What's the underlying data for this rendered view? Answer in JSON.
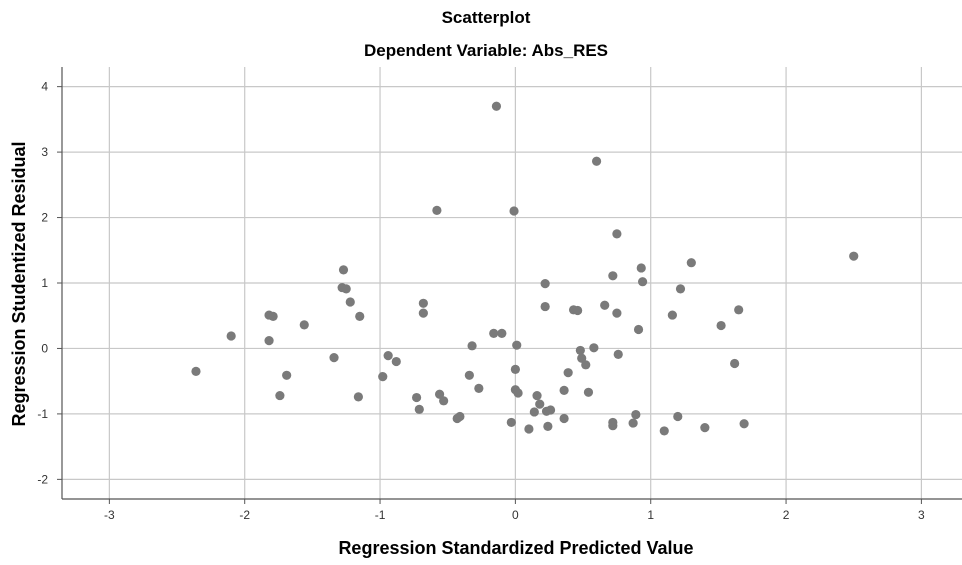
{
  "chart_data": {
    "type": "scatter",
    "title": "Scatterplot",
    "subtitle": "Dependent Variable: Abs_RES",
    "xlabel": "Regression Standardized Predicted Value",
    "ylabel": "Regression Studentized Residual",
    "xlim": [
      -3.35,
      3.3
    ],
    "ylim": [
      -2.3,
      4.3
    ],
    "xticks": [
      "-3",
      "-2",
      "-1",
      "0",
      "1",
      "2",
      "3"
    ],
    "yticks": [
      "4",
      "3",
      "2",
      "1",
      "0",
      "-1",
      "-2"
    ],
    "xtick_values": [
      -3,
      -2,
      -1,
      0,
      1,
      2,
      3
    ],
    "ytick_values": [
      4,
      3,
      2,
      1,
      0,
      -1,
      -2
    ],
    "grid": true,
    "legend": "none",
    "colors": {
      "point": "#7a7a7a",
      "grid": "#c8c8c8",
      "axis": "#555555"
    },
    "points": [
      {
        "x": -0.14,
        "y": 3.7
      },
      {
        "x": 0.6,
        "y": 2.86
      },
      {
        "x": -0.58,
        "y": 2.11
      },
      {
        "x": -0.01,
        "y": 2.1
      },
      {
        "x": 0.75,
        "y": 1.75
      },
      {
        "x": 2.5,
        "y": 1.41
      },
      {
        "x": 1.3,
        "y": 1.31
      },
      {
        "x": 0.93,
        "y": 1.23
      },
      {
        "x": -1.27,
        "y": 1.2
      },
      {
        "x": 0.72,
        "y": 1.11
      },
      {
        "x": 0.94,
        "y": 1.02
      },
      {
        "x": 0.22,
        "y": 0.99
      },
      {
        "x": -1.28,
        "y": 0.93
      },
      {
        "x": -1.25,
        "y": 0.91
      },
      {
        "x": 1.22,
        "y": 0.91
      },
      {
        "x": -1.22,
        "y": 0.71
      },
      {
        "x": -0.68,
        "y": 0.69
      },
      {
        "x": 0.66,
        "y": 0.66
      },
      {
        "x": 0.22,
        "y": 0.64
      },
      {
        "x": 1.65,
        "y": 0.59
      },
      {
        "x": 0.43,
        "y": 0.59
      },
      {
        "x": 0.46,
        "y": 0.58
      },
      {
        "x": 0.75,
        "y": 0.54
      },
      {
        "x": -0.68,
        "y": 0.54
      },
      {
        "x": -1.82,
        "y": 0.51
      },
      {
        "x": -1.79,
        "y": 0.49
      },
      {
        "x": -1.15,
        "y": 0.49
      },
      {
        "x": 1.16,
        "y": 0.51
      },
      {
        "x": -1.56,
        "y": 0.36
      },
      {
        "x": 1.52,
        "y": 0.35
      },
      {
        "x": 0.91,
        "y": 0.29
      },
      {
        "x": -0.16,
        "y": 0.23
      },
      {
        "x": -0.1,
        "y": 0.23
      },
      {
        "x": -2.1,
        "y": 0.19
      },
      {
        "x": -1.82,
        "y": 0.12
      },
      {
        "x": 0.01,
        "y": 0.05
      },
      {
        "x": -0.32,
        "y": 0.04
      },
      {
        "x": 0.58,
        "y": 0.01
      },
      {
        "x": 0.48,
        "y": -0.03
      },
      {
        "x": 0.76,
        "y": -0.09
      },
      {
        "x": -0.94,
        "y": -0.11
      },
      {
        "x": -1.34,
        "y": -0.14
      },
      {
        "x": 0.49,
        "y": -0.15
      },
      {
        "x": -0.88,
        "y": -0.2
      },
      {
        "x": 1.62,
        "y": -0.23
      },
      {
        "x": 0.52,
        "y": -0.25
      },
      {
        "x": 0.0,
        "y": -0.32
      },
      {
        "x": -2.36,
        "y": -0.35
      },
      {
        "x": 0.39,
        "y": -0.37
      },
      {
        "x": -1.69,
        "y": -0.41
      },
      {
        "x": -0.34,
        "y": -0.41
      },
      {
        "x": -0.98,
        "y": -0.43
      },
      {
        "x": -0.27,
        "y": -0.61
      },
      {
        "x": 0.0,
        "y": -0.63
      },
      {
        "x": 0.36,
        "y": -0.64
      },
      {
        "x": 0.02,
        "y": -0.68
      },
      {
        "x": 0.54,
        "y": -0.67
      },
      {
        "x": -0.56,
        "y": -0.7
      },
      {
        "x": -1.74,
        "y": -0.72
      },
      {
        "x": 0.16,
        "y": -0.72
      },
      {
        "x": -1.16,
        "y": -0.74
      },
      {
        "x": -0.73,
        "y": -0.75
      },
      {
        "x": -0.53,
        "y": -0.8
      },
      {
        "x": 0.18,
        "y": -0.85
      },
      {
        "x": -0.71,
        "y": -0.93
      },
      {
        "x": 0.26,
        "y": -0.94
      },
      {
        "x": 0.23,
        "y": -0.96
      },
      {
        "x": 0.14,
        "y": -0.97
      },
      {
        "x": 0.89,
        "y": -1.01
      },
      {
        "x": -0.41,
        "y": -1.04
      },
      {
        "x": 1.2,
        "y": -1.04
      },
      {
        "x": -0.43,
        "y": -1.07
      },
      {
        "x": 0.36,
        "y": -1.07
      },
      {
        "x": -0.03,
        "y": -1.13
      },
      {
        "x": 0.72,
        "y": -1.13
      },
      {
        "x": 0.87,
        "y": -1.14
      },
      {
        "x": 1.69,
        "y": -1.15
      },
      {
        "x": 0.72,
        "y": -1.18
      },
      {
        "x": 0.24,
        "y": -1.19
      },
      {
        "x": 1.4,
        "y": -1.21
      },
      {
        "x": 0.1,
        "y": -1.23
      },
      {
        "x": 1.1,
        "y": -1.26
      }
    ]
  }
}
